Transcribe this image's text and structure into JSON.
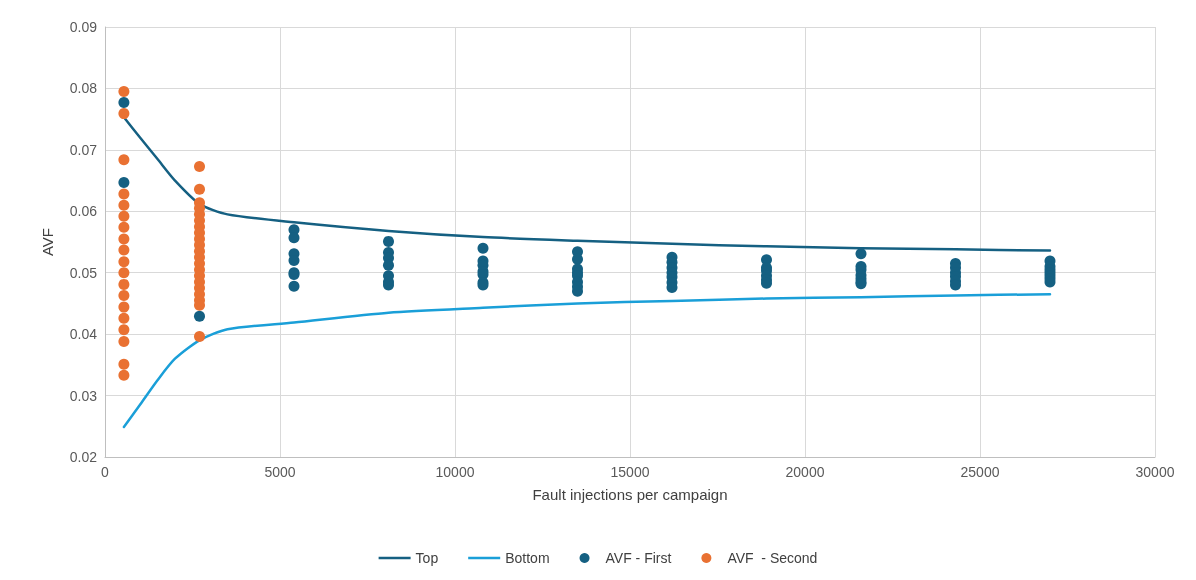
{
  "chart_data": {
    "type": "scatter",
    "xlabel": "Fault injections per campaign",
    "ylabel": "AVF",
    "xlim": [
      0,
      30000
    ],
    "xticks": [
      0,
      5000,
      10000,
      15000,
      20000,
      25000,
      30000
    ],
    "ylim": [
      0.02,
      0.09
    ],
    "yticks": [
      0.02,
      0.03,
      0.04,
      0.05,
      0.06,
      0.07,
      0.08,
      0.09
    ],
    "grid": true,
    "legend": "bottom",
    "series": [
      {
        "name": "Top",
        "type": "line",
        "marker": "none",
        "color": "#156082",
        "x": [
          540,
          1000,
          1500,
          2000,
          2700,
          3500,
          5400,
          8100,
          10800,
          13500,
          16200,
          18900,
          21600,
          24300,
          27000
        ],
        "values": [
          0.0753,
          0.072,
          0.0685,
          0.065,
          0.0612,
          0.0595,
          0.0582,
          0.0568,
          0.0558,
          0.0552,
          0.0547,
          0.0543,
          0.054,
          0.0538,
          0.0536
        ]
      },
      {
        "name": "Bottom",
        "type": "line",
        "marker": "none",
        "color": "#1a9fd8",
        "x": [
          540,
          1000,
          1500,
          2000,
          2700,
          3500,
          5400,
          8100,
          10800,
          13500,
          16200,
          18900,
          21600,
          24300,
          27000
        ],
        "values": [
          0.0249,
          0.0285,
          0.0325,
          0.036,
          0.039,
          0.0408,
          0.0419,
          0.0435,
          0.0443,
          0.045,
          0.0454,
          0.0458,
          0.046,
          0.0463,
          0.0465
        ]
      },
      {
        "name": "AVF - First",
        "marker": "circle",
        "color": "#156082",
        "x": [
          540,
          540,
          2700,
          5400,
          5400,
          5400,
          5400,
          5400,
          5400,
          5400,
          8100,
          8100,
          8100,
          8100,
          8100,
          8100,
          8100,
          10800,
          10800,
          10800,
          10800,
          10800,
          10800,
          10800,
          13500,
          13500,
          13500,
          13500,
          13500,
          13500,
          13500,
          13500,
          16200,
          16200,
          16200,
          16200,
          16200,
          16200,
          16200,
          18900,
          18900,
          18900,
          18900,
          18900,
          18900,
          21600,
          21600,
          21600,
          21600,
          21600,
          21600,
          21600,
          24300,
          24300,
          24300,
          24300,
          24300,
          24300,
          27000,
          27000,
          27000,
          27000,
          27000,
          27000,
          27000
        ],
        "values": [
          0.0777,
          0.0647,
          0.0429,
          0.057,
          0.0557,
          0.0531,
          0.052,
          0.05,
          0.0497,
          0.0478,
          0.0551,
          0.0533,
          0.0524,
          0.0512,
          0.0495,
          0.0485,
          0.048,
          0.054,
          0.0519,
          0.0512,
          0.0502,
          0.0497,
          0.0484,
          0.048,
          0.0534,
          0.0522,
          0.0506,
          0.05,
          0.0495,
          0.0485,
          0.0477,
          0.047,
          0.0525,
          0.0517,
          0.0508,
          0.05,
          0.0493,
          0.0484,
          0.0476,
          0.0521,
          0.0508,
          0.0503,
          0.0495,
          0.0488,
          0.0483,
          0.0531,
          0.051,
          0.0505,
          0.0496,
          0.049,
          0.0485,
          0.0482,
          0.0515,
          0.0508,
          0.05,
          0.0494,
          0.0486,
          0.048,
          0.0519,
          0.051,
          0.0505,
          0.05,
          0.0495,
          0.049,
          0.0485
        ]
      },
      {
        "name": "AVF  - Second",
        "marker": "circle",
        "color": "#e97132",
        "x": [
          540,
          540,
          540,
          540,
          540,
          540,
          540,
          540,
          540,
          540,
          540,
          540,
          540,
          540,
          540,
          540,
          540,
          540,
          540,
          2700,
          2700,
          2700,
          2700,
          2700,
          2700,
          2700,
          2700,
          2700,
          2700,
          2700,
          2700,
          2700,
          2700,
          2700,
          2700,
          2700,
          2700,
          2700,
          2700,
          2700
        ],
        "values": [
          0.0795,
          0.0759,
          0.0684,
          0.0628,
          0.061,
          0.0592,
          0.0574,
          0.0555,
          0.0537,
          0.0518,
          0.05,
          0.0481,
          0.0463,
          0.0444,
          0.0426,
          0.0407,
          0.0388,
          0.0351,
          0.0333,
          0.0673,
          0.0636,
          0.0614,
          0.0605,
          0.0595,
          0.0585,
          0.0575,
          0.0565,
          0.0555,
          0.0545,
          0.0535,
          0.0525,
          0.0515,
          0.0505,
          0.0495,
          0.0485,
          0.0475,
          0.0465,
          0.0455,
          0.0447,
          0.0396
        ]
      }
    ]
  }
}
